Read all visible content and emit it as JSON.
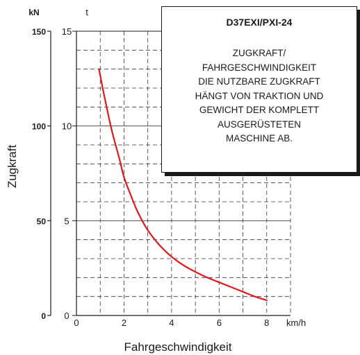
{
  "chart_data": {
    "type": "line",
    "ylabel": "Zugkraft",
    "xlabel": "Fahrgeschwindigkeit",
    "x_unit": "km/h",
    "y_unit_left": "kN",
    "y_unit_right": "t",
    "xlim": [
      0,
      9
    ],
    "ylim_t": [
      0,
      15
    ],
    "ylim_kN": [
      0,
      150
    ],
    "x_ticks": [
      "0",
      "2",
      "4",
      "6",
      "8"
    ],
    "y_ticks_t": [
      "0",
      "5",
      "10",
      "15"
    ],
    "y_ticks_kN": [
      "0",
      "50",
      "100",
      "150"
    ],
    "grid": true,
    "line_color": "#e0191e",
    "series": [
      {
        "unit": "t",
        "x": [
          0.95,
          1.2,
          1.5,
          1.8,
          2.0,
          2.3,
          2.6,
          3.0,
          3.5,
          4.0,
          4.5,
          5.0,
          5.5,
          6.0,
          6.5,
          7.0,
          7.5,
          8.0
        ],
        "y": [
          13.0,
          11.4,
          9.7,
          8.3,
          7.3,
          6.3,
          5.4,
          4.5,
          3.7,
          3.1,
          2.65,
          2.3,
          2.0,
          1.75,
          1.5,
          1.25,
          1.0,
          0.8
        ]
      }
    ]
  },
  "info_box": {
    "title": "D37EXI/PXI-24",
    "lines": [
      "ZUGKRAFT/",
      "FAHRGESCHWINDIGKEIT",
      "DIE NUTZBARE ZUGKRAFT",
      "HÄNGT VON TRAKTION UND",
      "GEWICHT DER KOMPLETT",
      "AUSGERÜSTETEN",
      "MASCHINE AB."
    ]
  }
}
